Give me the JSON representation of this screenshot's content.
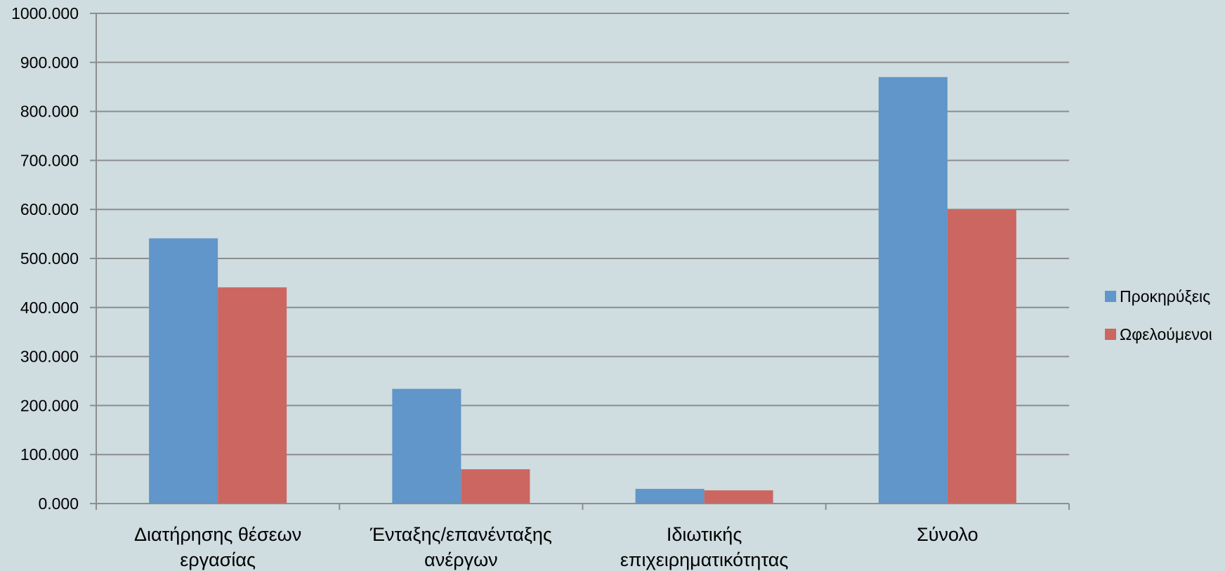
{
  "chart_data": {
    "type": "bar",
    "title": "",
    "xlabel": "",
    "ylabel": "",
    "ylim": [
      0,
      1000
    ],
    "ytick_labels": [
      "0.000",
      "100.000",
      "200.000",
      "300.000",
      "400.000",
      "500.000",
      "600.000",
      "700.000",
      "800.000",
      "900.000",
      "1000.000"
    ],
    "categories": [
      [
        "Διατήρησης θέσεων",
        "εργασίας"
      ],
      [
        "Ένταξης/επανένταξης",
        "ανέργων"
      ],
      [
        "Ιδιωτικής",
        "επιχειρηματικότητας"
      ],
      [
        "Σύνολο"
      ]
    ],
    "series": [
      {
        "name": "Προκηρύξεις",
        "color": "#6096c9",
        "values": [
          541,
          234,
          30,
          870
        ]
      },
      {
        "name": "Ωφελούμενοι",
        "color": "#cc6660",
        "values": [
          441,
          70,
          27,
          600
        ]
      }
    ],
    "grid": true,
    "legend_position": "right"
  }
}
